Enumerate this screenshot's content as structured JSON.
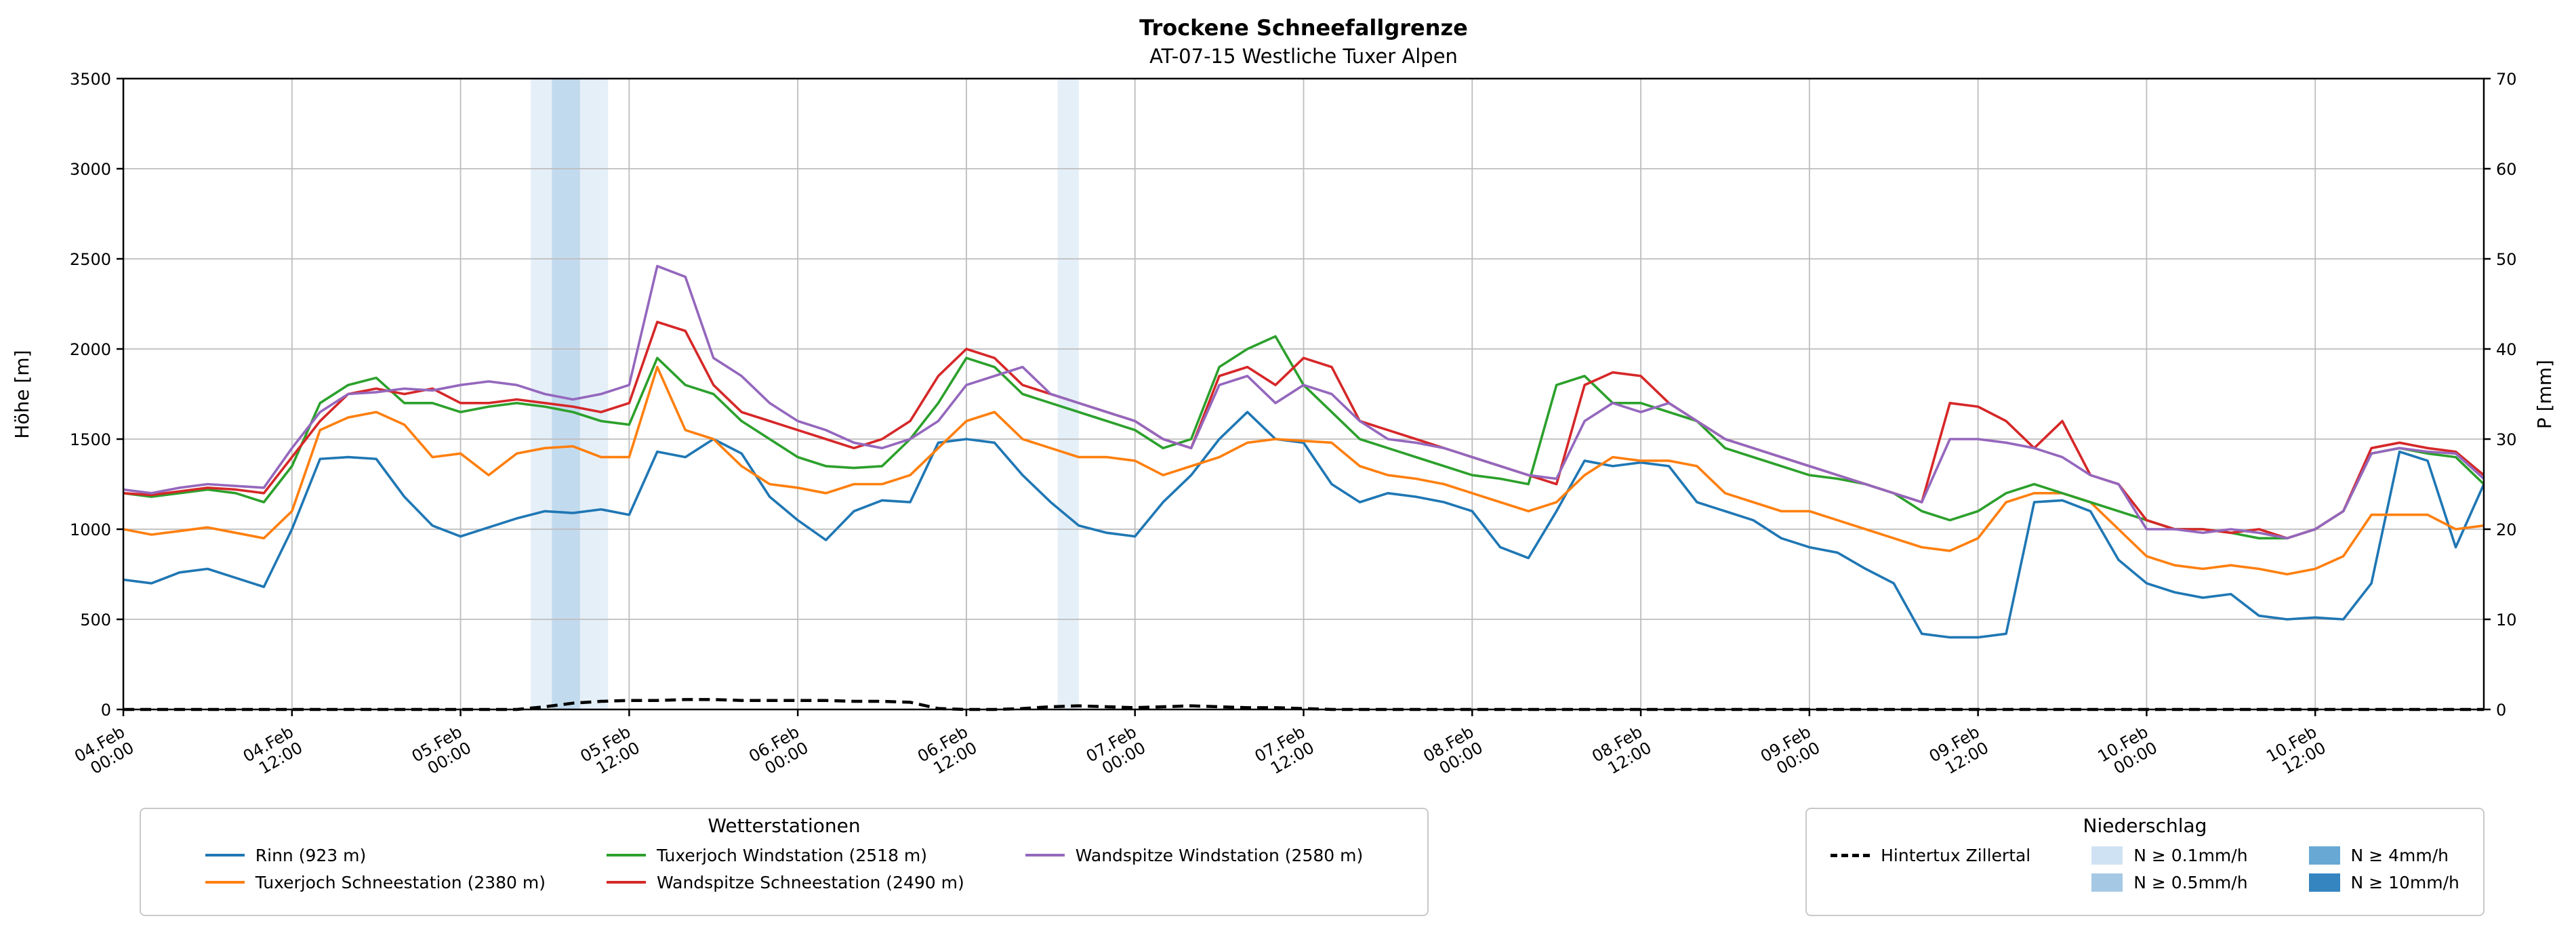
{
  "chart_data": {
    "type": "line",
    "title": "Trockene Schneefallgrenze",
    "subtitle": "AT-07-15 Westliche Tuxer Alpen",
    "ylabel_left": "Höhe [m]",
    "ylabel_right": "P [mm]",
    "ylim_left": [
      0,
      3500
    ],
    "ylim_right": [
      0,
      70
    ],
    "yticks_left": [
      0,
      500,
      1000,
      1500,
      2000,
      2500,
      3000,
      3500
    ],
    "yticks_right": [
      0,
      10,
      20,
      30,
      40,
      50,
      60,
      70
    ],
    "grid": true,
    "x_unit": "hours since 04.Feb 00:00",
    "x_step_hours": 2,
    "xlim_hours": [
      0,
      168
    ],
    "x_ticks": [
      {
        "hour": 0,
        "date": "04.Feb",
        "time": "00:00"
      },
      {
        "hour": 12,
        "date": "04.Feb",
        "time": "12:00"
      },
      {
        "hour": 24,
        "date": "05.Feb",
        "time": "00:00"
      },
      {
        "hour": 36,
        "date": "05.Feb",
        "time": "12:00"
      },
      {
        "hour": 48,
        "date": "06.Feb",
        "time": "00:00"
      },
      {
        "hour": 60,
        "date": "06.Feb",
        "time": "12:00"
      },
      {
        "hour": 72,
        "date": "07.Feb",
        "time": "00:00"
      },
      {
        "hour": 84,
        "date": "07.Feb",
        "time": "12:00"
      },
      {
        "hour": 96,
        "date": "08.Feb",
        "time": "00:00"
      },
      {
        "hour": 108,
        "date": "08.Feb",
        "time": "12:00"
      },
      {
        "hour": 120,
        "date": "09.Feb",
        "time": "00:00"
      },
      {
        "hour": 132,
        "date": "09.Feb",
        "time": "12:00"
      },
      {
        "hour": 144,
        "date": "10.Feb",
        "time": "00:00"
      },
      {
        "hour": 156,
        "date": "10.Feb",
        "time": "12:00"
      }
    ],
    "series": [
      {
        "name": "Rinn (923 m)",
        "color": "#1f77b4",
        "axis": "left",
        "values": [
          720,
          700,
          760,
          780,
          730,
          680,
          1000,
          1390,
          1400,
          1390,
          1180,
          1020,
          960,
          1010,
          1060,
          1100,
          1090,
          1110,
          1080,
          1430,
          1400,
          1500,
          1420,
          1180,
          1050,
          940,
          1100,
          1160,
          1150,
          1480,
          1500,
          1480,
          1300,
          1150,
          1020,
          980,
          960,
          1150,
          1300,
          1500,
          1650,
          1500,
          1480,
          1250,
          1150,
          1200,
          1180,
          1150,
          1100,
          900,
          840,
          1100,
          1380,
          1350,
          1370,
          1350,
          1150,
          1100,
          1050,
          950,
          900,
          870,
          780,
          700,
          420,
          400,
          400,
          420,
          1150,
          1160,
          1100,
          830,
          700,
          650,
          620,
          640,
          520,
          500,
          510,
          500,
          700,
          1430,
          1380,
          900,
          1250
        ]
      },
      {
        "name": "Tuxerjoch Schneestation (2380 m)",
        "color": "#ff7f0e",
        "axis": "left",
        "values": [
          1000,
          970,
          990,
          1010,
          980,
          950,
          1100,
          1550,
          1620,
          1650,
          1580,
          1400,
          1420,
          1300,
          1420,
          1450,
          1460,
          1400,
          1400,
          1900,
          1550,
          1500,
          1350,
          1250,
          1230,
          1200,
          1250,
          1250,
          1300,
          1450,
          1600,
          1650,
          1500,
          1450,
          1400,
          1400,
          1380,
          1300,
          1350,
          1400,
          1480,
          1500,
          1490,
          1480,
          1350,
          1300,
          1280,
          1250,
          1200,
          1150,
          1100,
          1150,
          1300,
          1400,
          1380,
          1380,
          1350,
          1200,
          1150,
          1100,
          1100,
          1050,
          1000,
          950,
          900,
          880,
          950,
          1150,
          1200,
          1200,
          1150,
          1000,
          850,
          800,
          780,
          800,
          780,
          750,
          780,
          850,
          1080,
          1080,
          1080,
          1000,
          1020
        ]
      },
      {
        "name": "Tuxerjoch Windstation (2518 m)",
        "color": "#2ca02c",
        "axis": "left",
        "values": [
          1200,
          1180,
          1200,
          1220,
          1200,
          1150,
          1350,
          1700,
          1800,
          1840,
          1700,
          1700,
          1650,
          1680,
          1700,
          1680,
          1650,
          1600,
          1580,
          1950,
          1800,
          1750,
          1600,
          1500,
          1400,
          1350,
          1340,
          1350,
          1500,
          1700,
          1950,
          1900,
          1750,
          1700,
          1650,
          1600,
          1550,
          1450,
          1500,
          1900,
          2000,
          2070,
          1800,
          1650,
          1500,
          1450,
          1400,
          1350,
          1300,
          1280,
          1250,
          1800,
          1850,
          1700,
          1700,
          1650,
          1600,
          1450,
          1400,
          1350,
          1300,
          1280,
          1250,
          1200,
          1100,
          1050,
          1100,
          1200,
          1250,
          1200,
          1150,
          1100,
          1050,
          1000,
          1000,
          980,
          950,
          950,
          1000,
          1100,
          1420,
          1450,
          1420,
          1400,
          1250
        ]
      },
      {
        "name": "Wandspitze Schneestation (2490 m)",
        "color": "#d62728",
        "axis": "left",
        "values": [
          1200,
          1190,
          1210,
          1230,
          1220,
          1200,
          1400,
          1600,
          1750,
          1780,
          1750,
          1780,
          1700,
          1700,
          1720,
          1700,
          1680,
          1650,
          1700,
          2150,
          2100,
          1800,
          1650,
          1600,
          1550,
          1500,
          1450,
          1500,
          1600,
          1850,
          2000,
          1950,
          1800,
          1750,
          1700,
          1650,
          1600,
          1500,
          1450,
          1850,
          1900,
          1800,
          1950,
          1900,
          1600,
          1550,
          1500,
          1450,
          1400,
          1350,
          1300,
          1250,
          1800,
          1870,
          1850,
          1700,
          1600,
          1500,
          1450,
          1400,
          1350,
          1300,
          1250,
          1200,
          1150,
          1700,
          1680,
          1600,
          1450,
          1600,
          1300,
          1250,
          1050,
          1000,
          1000,
          980,
          1000,
          950,
          1000,
          1100,
          1450,
          1480,
          1450,
          1430,
          1300
        ]
      },
      {
        "name": "Wandspitze Windstation (2580 m)",
        "color": "#9467bd",
        "axis": "left",
        "values": [
          1220,
          1200,
          1230,
          1250,
          1240,
          1230,
          1450,
          1650,
          1750,
          1760,
          1780,
          1770,
          1800,
          1820,
          1800,
          1750,
          1720,
          1750,
          1800,
          2460,
          2400,
          1950,
          1850,
          1700,
          1600,
          1550,
          1480,
          1450,
          1500,
          1600,
          1800,
          1850,
          1900,
          1750,
          1700,
          1650,
          1600,
          1500,
          1450,
          1800,
          1850,
          1700,
          1800,
          1750,
          1600,
          1500,
          1480,
          1450,
          1400,
          1350,
          1300,
          1280,
          1600,
          1700,
          1650,
          1700,
          1600,
          1500,
          1450,
          1400,
          1350,
          1300,
          1250,
          1200,
          1150,
          1500,
          1500,
          1480,
          1450,
          1400,
          1300,
          1250,
          1000,
          1000,
          980,
          1000,
          980,
          950,
          1000,
          1100,
          1420,
          1450,
          1430,
          1420,
          1280
        ]
      }
    ],
    "precip_series": {
      "name": "Hintertux Zillertal",
      "color": "#000000",
      "style": "dashed",
      "axis": "right",
      "values": [
        0,
        0,
        0,
        0,
        0,
        0,
        0,
        0,
        0,
        0,
        0,
        0,
        0,
        0,
        0,
        0.3,
        0.7,
        0.9,
        1.0,
        1.0,
        1.1,
        1.1,
        1.0,
        1.0,
        1.0,
        1.0,
        0.9,
        0.9,
        0.8,
        0.1,
        0,
        0,
        0.1,
        0.3,
        0.4,
        0.3,
        0.2,
        0.3,
        0.4,
        0.3,
        0.2,
        0.2,
        0.1,
        0,
        0,
        0,
        0,
        0,
        0,
        0,
        0,
        0,
        0,
        0,
        0,
        0,
        0,
        0,
        0,
        0,
        0,
        0,
        0,
        0,
        0,
        0,
        0,
        0,
        0,
        0,
        0,
        0,
        0,
        0,
        0,
        0,
        0,
        0,
        0,
        0,
        0,
        0,
        0,
        0,
        0
      ]
    },
    "precip_bands": [
      {
        "start_hour": 29,
        "end_hour": 34.5,
        "level": "0.1"
      },
      {
        "start_hour": 30.5,
        "end_hour": 32.5,
        "level": "0.5"
      },
      {
        "start_hour": 66.5,
        "end_hour": 68,
        "level": "0.1"
      }
    ],
    "band_levels": [
      {
        "key": "0.1",
        "label": "N ≥ 0.1mm/h",
        "color": "#cfe2f3"
      },
      {
        "key": "0.5",
        "label": "N ≥ 0.5mm/h",
        "color": "#a5c9e5"
      },
      {
        "key": "4",
        "label": "N ≥ 4mm/h",
        "color": "#67a9d4"
      },
      {
        "key": "10",
        "label": "N ≥ 10mm/h",
        "color": "#3585c0"
      }
    ]
  },
  "legend_stations": {
    "title": "Wetterstationen"
  },
  "legend_precip": {
    "title": "Niederschlag"
  }
}
